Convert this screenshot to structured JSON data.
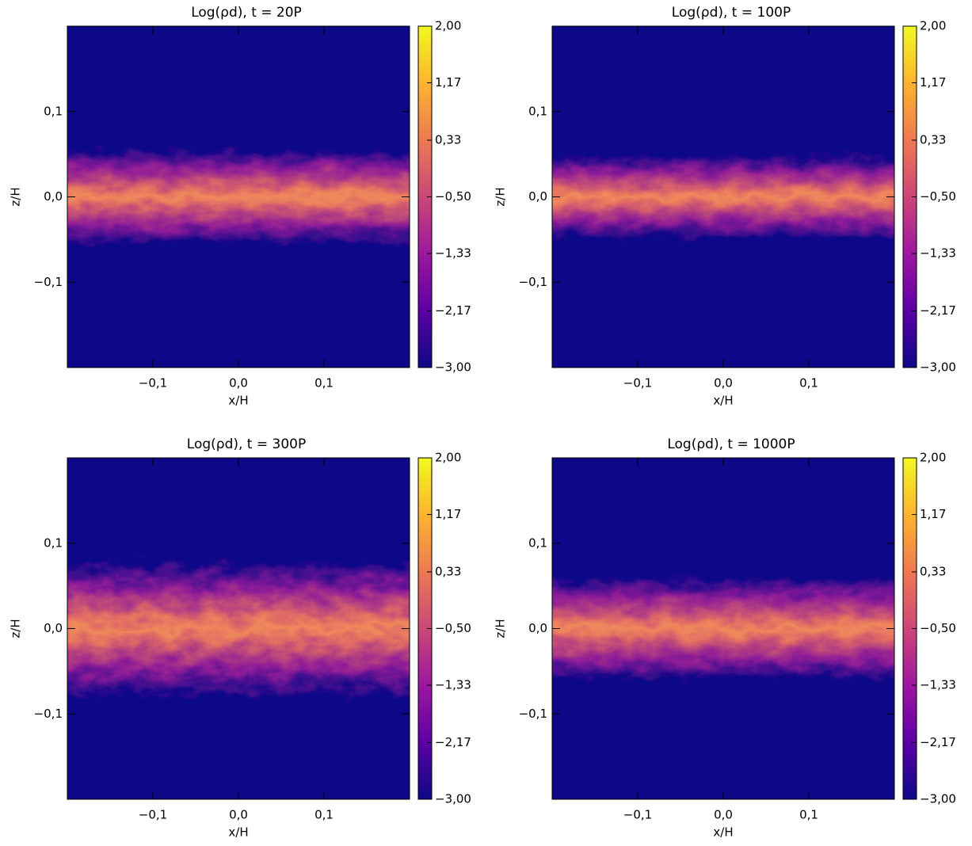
{
  "chart_data": [
    {
      "type": "heatmap",
      "title": "Log(ρd), t = 20P",
      "xlabel": "x/H",
      "ylabel": "z/H",
      "xlim": [
        -0.2,
        0.2
      ],
      "ylim": [
        -0.2,
        0.2
      ],
      "xticks": [
        {
          "value": -0.1,
          "label": "−0,1"
        },
        {
          "value": 0.0,
          "label": "0,0"
        },
        {
          "value": 0.1,
          "label": "0,1"
        }
      ],
      "yticks": [
        {
          "value": -0.1,
          "label": "−0,1"
        },
        {
          "value": 0.0,
          "label": "0,0"
        },
        {
          "value": 0.1,
          "label": "0,1"
        }
      ],
      "clim": [
        -3,
        2
      ],
      "cticks": [
        {
          "value": -3,
          "label": "−3,00"
        },
        {
          "value": -2.17,
          "label": "−2,17"
        },
        {
          "value": -1.33,
          "label": "−1,33"
        },
        {
          "value": -0.5,
          "label": "−0,50"
        },
        {
          "value": 0.33,
          "label": "0,33"
        },
        {
          "value": 1.17,
          "label": "1,17"
        },
        {
          "value": 2,
          "label": "2,00"
        }
      ],
      "colormap": [
        "#0d0887",
        "#5c01a6",
        "#9c179e",
        "#cc4778",
        "#ed7953",
        "#fdb42f",
        "#f0f921"
      ]
    },
    {
      "type": "heatmap",
      "title": "Log(ρd), t = 100P",
      "xlabel": "x/H",
      "ylabel": "z/H",
      "xlim": [
        -0.2,
        0.2
      ],
      "ylim": [
        -0.2,
        0.2
      ],
      "xticks": [
        {
          "value": -0.1,
          "label": "−0,1"
        },
        {
          "value": 0.0,
          "label": "0,0"
        },
        {
          "value": 0.1,
          "label": "0,1"
        }
      ],
      "yticks": [
        {
          "value": -0.1,
          "label": "−0,1"
        },
        {
          "value": 0.0,
          "label": "0,0"
        },
        {
          "value": 0.1,
          "label": "0,1"
        }
      ],
      "clim": [
        -3,
        2
      ],
      "cticks": [
        {
          "value": -3,
          "label": "−3,00"
        },
        {
          "value": -2.17,
          "label": "−2,17"
        },
        {
          "value": -1.33,
          "label": "−1,33"
        },
        {
          "value": -0.5,
          "label": "−0,50"
        },
        {
          "value": 0.33,
          "label": "0,33"
        },
        {
          "value": 1.17,
          "label": "1,17"
        },
        {
          "value": 2,
          "label": "2,00"
        }
      ],
      "colormap": [
        "#0d0887",
        "#5c01a6",
        "#9c179e",
        "#cc4778",
        "#ed7953",
        "#fdb42f",
        "#f0f921"
      ]
    },
    {
      "type": "heatmap",
      "title": "Log(ρd), t = 300P",
      "xlabel": "x/H",
      "ylabel": "z/H",
      "xlim": [
        -0.2,
        0.2
      ],
      "ylim": [
        -0.2,
        0.2
      ],
      "xticks": [
        {
          "value": -0.1,
          "label": "−0,1"
        },
        {
          "value": 0.0,
          "label": "0,0"
        },
        {
          "value": 0.1,
          "label": "0,1"
        }
      ],
      "yticks": [
        {
          "value": -0.1,
          "label": "−0,1"
        },
        {
          "value": 0.0,
          "label": "0,0"
        },
        {
          "value": 0.1,
          "label": "0,1"
        }
      ],
      "clim": [
        -3,
        2
      ],
      "cticks": [
        {
          "value": -3,
          "label": "−3,00"
        },
        {
          "value": -2.17,
          "label": "−2,17"
        },
        {
          "value": -1.33,
          "label": "−1,33"
        },
        {
          "value": -0.5,
          "label": "−0,50"
        },
        {
          "value": 0.33,
          "label": "0,33"
        },
        {
          "value": 1.17,
          "label": "1,17"
        },
        {
          "value": 2,
          "label": "2,00"
        }
      ],
      "colormap": [
        "#0d0887",
        "#5c01a6",
        "#9c179e",
        "#cc4778",
        "#ed7953",
        "#fdb42f",
        "#f0f921"
      ]
    },
    {
      "type": "heatmap",
      "title": "Log(ρd), t = 1000P",
      "xlabel": "x/H",
      "ylabel": "z/H",
      "xlim": [
        -0.2,
        0.2
      ],
      "ylim": [
        -0.2,
        0.2
      ],
      "xticks": [
        {
          "value": -0.1,
          "label": "−0,1"
        },
        {
          "value": 0.0,
          "label": "0,0"
        },
        {
          "value": 0.1,
          "label": "0,1"
        }
      ],
      "yticks": [
        {
          "value": -0.1,
          "label": "−0,1"
        },
        {
          "value": 0.0,
          "label": "0,0"
        },
        {
          "value": 0.1,
          "label": "0,1"
        }
      ],
      "clim": [
        -3,
        2
      ],
      "cticks": [
        {
          "value": -3,
          "label": "−3,00"
        },
        {
          "value": -2.17,
          "label": "−2,17"
        },
        {
          "value": -1.33,
          "label": "−1,33"
        },
        {
          "value": -0.5,
          "label": "−0,50"
        },
        {
          "value": 0.33,
          "label": "0,33"
        },
        {
          "value": 1.17,
          "label": "1,17"
        },
        {
          "value": 2,
          "label": "2,00"
        }
      ],
      "colormap": [
        "#0d0887",
        "#5c01a6",
        "#9c179e",
        "#cc4778",
        "#ed7953",
        "#fdb42f",
        "#f0f921"
      ]
    }
  ]
}
